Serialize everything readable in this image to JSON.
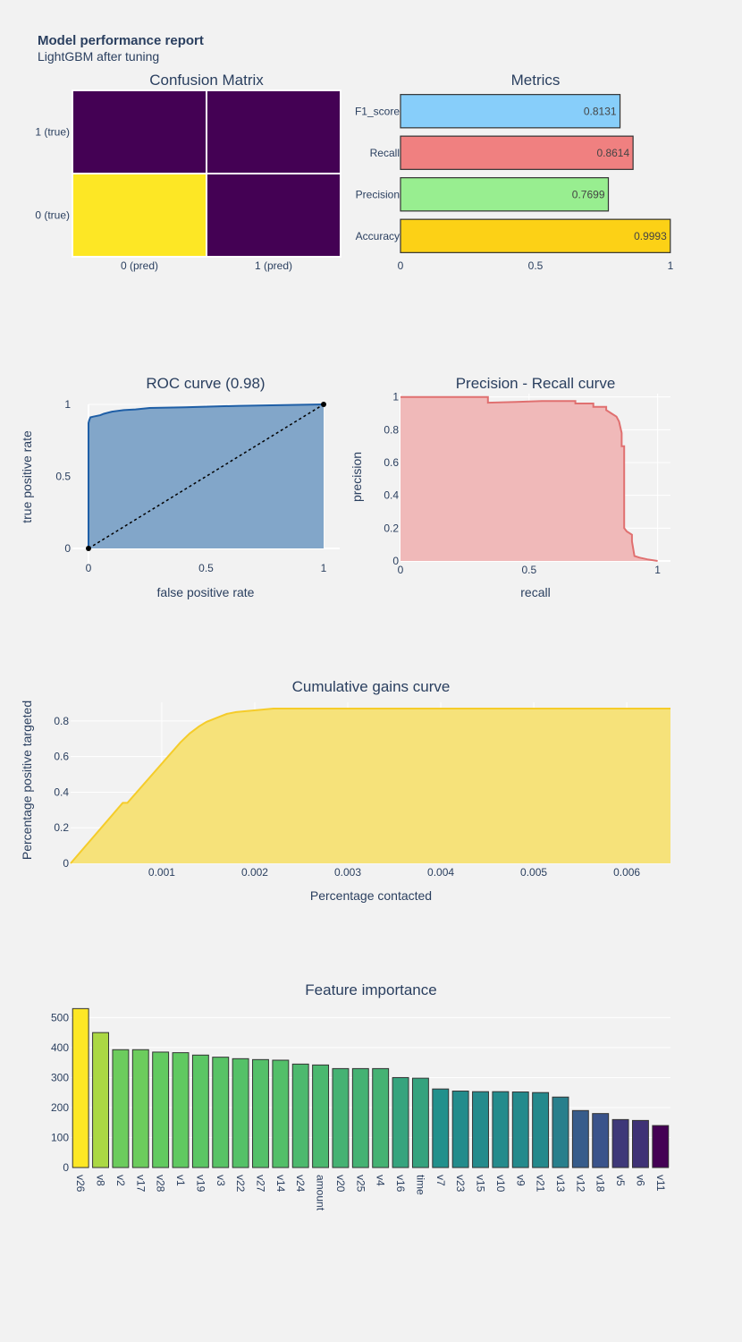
{
  "report": {
    "title": "Model performance report",
    "subtitle": "LightGBM after tuning"
  },
  "chart_data": [
    {
      "type": "heatmap",
      "title": "Confusion Matrix",
      "x_categories": [
        "0 (pred)",
        "1 (pred)"
      ],
      "y_categories": [
        "0 (true)",
        "1 (true)"
      ],
      "colors": [
        [
          "#fde725",
          "#440154"
        ],
        [
          "#440154",
          "#440154"
        ]
      ]
    },
    {
      "type": "bar",
      "orientation": "horizontal",
      "title": "Metrics",
      "categories": [
        "Accuracy",
        "Precision",
        "Recall",
        "F1_score"
      ],
      "values": [
        0.9993,
        0.7699,
        0.8614,
        0.8131
      ],
      "labels": [
        "0.9993",
        "0.7699",
        "0.8614",
        "0.8131"
      ],
      "colors": [
        "#fcd116",
        "#98ee90",
        "#f08080",
        "#87cefa"
      ],
      "xlim": [
        0,
        1
      ],
      "xticks": [
        "0",
        "0.5",
        "1"
      ]
    },
    {
      "type": "area",
      "title": "ROC curve (0.98)",
      "xlabel": "false positive rate",
      "ylabel": "true positive rate",
      "xlim": [
        0,
        1
      ],
      "ylim": [
        0,
        1
      ],
      "xticks": [
        "0",
        "0.5",
        "1"
      ],
      "yticks": [
        "0",
        "0.5",
        "1"
      ],
      "x": [
        0,
        0.0,
        0.003,
        0.008,
        0.02,
        0.05,
        0.065,
        0.1,
        0.15,
        0.2,
        0.26,
        0.41,
        0.64,
        1.0
      ],
      "y": [
        0,
        0.87,
        0.89,
        0.91,
        0.915,
        0.925,
        0.935,
        0.95,
        0.96,
        0.965,
        0.975,
        0.98,
        0.99,
        1.0
      ],
      "diagonal": true,
      "color": "#1f5fa6",
      "fill": "#82a6c9"
    },
    {
      "type": "area",
      "title": "Precision - Recall curve",
      "xlabel": "recall",
      "ylabel": "precision",
      "xlim": [
        0,
        1.05
      ],
      "ylim": [
        0,
        1.02
      ],
      "xticks": [
        "0",
        "0.5",
        "1"
      ],
      "yticks": [
        "0",
        "0.2",
        "0.4",
        "0.6",
        "0.8",
        "1"
      ],
      "x": [
        0,
        0.34,
        0.34,
        0.45,
        0.55,
        0.68,
        0.68,
        0.75,
        0.75,
        0.8,
        0.8,
        0.82,
        0.84,
        0.85,
        0.86,
        0.86,
        0.87,
        0.87,
        0.88,
        0.9,
        0.9,
        0.91,
        0.93,
        0.96,
        1.0
      ],
      "y": [
        1.0,
        1.0,
        0.965,
        0.97,
        0.975,
        0.975,
        0.96,
        0.96,
        0.94,
        0.94,
        0.92,
        0.9,
        0.88,
        0.85,
        0.78,
        0.7,
        0.7,
        0.2,
        0.18,
        0.16,
        0.12,
        0.03,
        0.02,
        0.01,
        0.0
      ],
      "color": "#e07070",
      "fill": "#f0b9b9"
    },
    {
      "type": "area",
      "title": "Cumulative gains curve",
      "xlabel": "Percentage contacted",
      "ylabel": "Percentage positive targeted",
      "xlim": [
        2e-05,
        0.00647
      ],
      "ylim": [
        0,
        0.905
      ],
      "xticks": [
        "0.001",
        "0.002",
        "0.003",
        "0.004",
        "0.005",
        "0.006"
      ],
      "yticks": [
        "0",
        "0.2",
        "0.4",
        "0.6",
        "0.8"
      ],
      "x": [
        2e-05,
        0.00058,
        0.00063,
        0.0012,
        0.0013,
        0.0014,
        0.00148,
        0.0016,
        0.0017,
        0.0018,
        0.0022,
        0.00647
      ],
      "y": [
        0,
        0.34,
        0.34,
        0.68,
        0.73,
        0.77,
        0.795,
        0.82,
        0.84,
        0.85,
        0.87,
        0.87
      ],
      "color": "#f5cc2a",
      "fill": "#f6e27a"
    },
    {
      "type": "bar",
      "title": "Feature importance",
      "categories": [
        "v26",
        "v8",
        "v2",
        "v17",
        "v28",
        "v1",
        "v19",
        "v3",
        "v22",
        "v27",
        "v14",
        "v24",
        "amount",
        "v20",
        "v25",
        "v4",
        "v16",
        "time",
        "v7",
        "v23",
        "v15",
        "v10",
        "v9",
        "v21",
        "v13",
        "v12",
        "v18",
        "v5",
        "v6",
        "v11"
      ],
      "values": [
        530,
        450,
        393,
        393,
        385,
        383,
        375,
        368,
        363,
        360,
        358,
        345,
        342,
        330,
        330,
        330,
        300,
        298,
        262,
        255,
        253,
        253,
        252,
        250,
        235,
        190,
        180,
        160,
        157,
        140
      ],
      "ylim": [
        0,
        540
      ],
      "yticks": [
        "0",
        "100",
        "200",
        "300",
        "400",
        "500"
      ],
      "colormap": "viridis"
    }
  ]
}
